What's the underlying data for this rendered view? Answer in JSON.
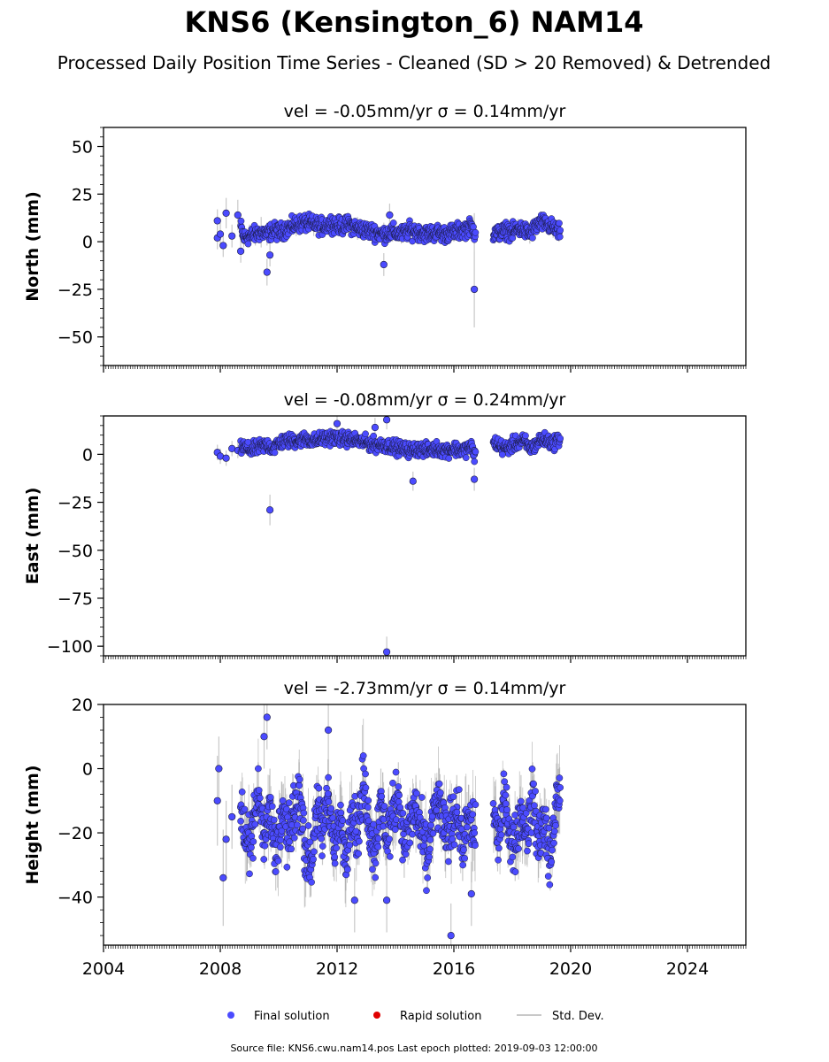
{
  "title": "KNS6 (Kensington_6) NAM14",
  "subtitle": "Processed Daily Position Time Series - Cleaned (SD > 20 Removed) & Detrended",
  "footer": "Source file: KNS6.cwu.nam14.pos  Last epoch plotted: 2019-09-03 12:00:00",
  "colors": {
    "final": "#4b4bff",
    "final_edge": "#1a1a40",
    "rapid": "#e00000",
    "stddev": "#c8c8c8",
    "axis": "#000000"
  },
  "legend": {
    "placement": "bottom-center",
    "items": [
      {
        "label": "Final solution",
        "kind": "dot",
        "color": "#4b4bff"
      },
      {
        "label": "Rapid solution",
        "kind": "dot",
        "color": "#e00000"
      },
      {
        "label": "Std. Dev.",
        "kind": "line",
        "color": "#c8c8c8"
      }
    ]
  },
  "chart_data": [
    {
      "type": "scatter",
      "panel": "north",
      "title": "vel = -0.05mm/yr   σ = 0.14mm/yr",
      "ylabel": "North (mm)",
      "xlim": [
        2004,
        2026
      ],
      "ylim": [
        -65,
        60
      ],
      "yticks": [
        -50,
        -25,
        0,
        25,
        50
      ],
      "ytick_labels": [
        "−50",
        "−25",
        "0",
        "25",
        "50"
      ],
      "xticks": [
        2004,
        2008,
        2012,
        2016,
        2020,
        2024
      ],
      "xtick_labels": [],
      "grid": false,
      "series": [
        {
          "name": "Final solution",
          "x": [
            2007.9,
            2008.0,
            2008.2,
            2008.4,
            2008.6,
            2008.8,
            2009.0,
            2009.2,
            2009.4,
            2009.6,
            2009.8,
            2010.0,
            2010.3,
            2010.6,
            2010.9,
            2011.2,
            2011.5,
            2011.8,
            2012.1,
            2012.4,
            2012.7,
            2013.0,
            2013.3,
            2013.6,
            2013.9,
            2014.2,
            2014.5,
            2014.8,
            2015.1,
            2015.4,
            2015.7,
            2016.0,
            2016.3,
            2016.6,
            2016.7,
            2017.4,
            2017.6,
            2017.8,
            2018.0,
            2018.2,
            2018.4,
            2018.6,
            2018.8,
            2019.0,
            2019.2,
            2019.4,
            2019.6,
            2008.1,
            2008.7,
            2009.6,
            2013.6,
            2016.7,
            2007.9,
            2009.7,
            2013.8
          ],
          "y": [
            2,
            4,
            15,
            3,
            14,
            2,
            3,
            4,
            5,
            4,
            6,
            5,
            7,
            9,
            10,
            9,
            8,
            10,
            8,
            9,
            7,
            6,
            5,
            4,
            5,
            4,
            6,
            5,
            4,
            5,
            4,
            5,
            6,
            8,
            5,
            4,
            5,
            6,
            5,
            7,
            6,
            4,
            8,
            10,
            9,
            7,
            5,
            -2,
            -5,
            -16,
            -12,
            -25,
            11,
            -7,
            14
          ],
          "yerr": [
            6,
            6,
            8,
            6,
            8,
            5,
            6,
            6,
            8,
            6,
            5,
            5,
            5,
            6,
            5,
            6,
            5,
            5,
            5,
            5,
            6,
            5,
            5,
            6,
            5,
            5,
            5,
            5,
            5,
            5,
            5,
            5,
            5,
            6,
            10,
            5,
            5,
            5,
            5,
            5,
            5,
            5,
            5,
            5,
            5,
            5,
            5,
            6,
            6,
            7,
            6,
            20,
            6,
            6,
            6
          ]
        }
      ]
    },
    {
      "type": "scatter",
      "panel": "east",
      "title": "vel = -0.08mm/yr   σ = 0.24mm/yr",
      "ylabel": "East (mm)",
      "xlim": [
        2004,
        2026
      ],
      "ylim": [
        -105,
        20
      ],
      "yticks": [
        -100,
        -75,
        -50,
        -25,
        0
      ],
      "ytick_labels": [
        "−100",
        "−75",
        "−50",
        "−25",
        "0"
      ],
      "xticks": [
        2004,
        2008,
        2012,
        2016,
        2020,
        2024
      ],
      "xtick_labels": [],
      "grid": false,
      "series": [
        {
          "name": "Final solution",
          "x": [
            2007.9,
            2008.0,
            2008.2,
            2008.4,
            2008.6,
            2008.8,
            2009.0,
            2009.2,
            2009.4,
            2009.6,
            2009.8,
            2010.0,
            2010.3,
            2010.6,
            2010.9,
            2011.2,
            2011.5,
            2011.8,
            2012.1,
            2012.4,
            2012.7,
            2013.0,
            2013.3,
            2013.6,
            2013.9,
            2014.2,
            2014.5,
            2014.8,
            2015.1,
            2015.4,
            2015.7,
            2016.0,
            2016.3,
            2016.6,
            2016.7,
            2017.4,
            2017.6,
            2017.8,
            2018.0,
            2018.2,
            2018.4,
            2018.6,
            2018.8,
            2019.0,
            2019.2,
            2019.4,
            2019.6,
            2009.7,
            2013.7,
            2013.7,
            2014.6,
            2016.7,
            2012.0,
            2013.3
          ],
          "y": [
            1,
            -1,
            -2,
            3,
            2,
            4,
            2,
            3,
            4,
            5,
            3,
            6,
            7,
            7,
            8,
            7,
            8,
            9,
            8,
            8,
            7,
            6,
            5,
            5,
            4,
            3,
            2,
            3,
            2,
            3,
            2,
            3,
            2,
            4,
            0,
            6,
            4,
            3,
            5,
            6,
            7,
            3,
            5,
            8,
            7,
            6,
            8,
            -29,
            -103,
            18,
            -14,
            -13,
            16,
            14
          ],
          "yerr": [
            4,
            4,
            4,
            4,
            4,
            4,
            4,
            4,
            4,
            4,
            4,
            4,
            4,
            4,
            4,
            4,
            4,
            4,
            4,
            4,
            4,
            4,
            4,
            4,
            4,
            4,
            4,
            4,
            4,
            4,
            4,
            4,
            4,
            4,
            5,
            4,
            4,
            4,
            4,
            4,
            4,
            4,
            4,
            4,
            4,
            4,
            4,
            8,
            8,
            5,
            5,
            6,
            5,
            5
          ]
        }
      ]
    },
    {
      "type": "scatter",
      "panel": "height",
      "title": "vel = -2.73mm/yr   σ = 0.14mm/yr",
      "ylabel": "Height (mm)",
      "xlim": [
        2004,
        2026
      ],
      "ylim": [
        -55,
        20
      ],
      "yticks": [
        -40,
        -20,
        0,
        20
      ],
      "ytick_labels": [
        "−40",
        "−20",
        "0",
        "20"
      ],
      "xticks": [
        2004,
        2008,
        2012,
        2016,
        2020,
        2024
      ],
      "xtick_labels": [
        "2004",
        "2008",
        "2012",
        "2016",
        "2020",
        "2024"
      ],
      "grid": false,
      "series": [
        {
          "name": "Final solution",
          "x": [
            2007.9,
            2007.95,
            2008.2,
            2008.4,
            2008.7,
            2008.9,
            2009.1,
            2009.3,
            2009.5,
            2009.7,
            2009.9,
            2010.1,
            2010.3,
            2010.5,
            2010.7,
            2010.9,
            2011.1,
            2011.3,
            2011.5,
            2011.7,
            2011.9,
            2012.1,
            2012.3,
            2012.5,
            2012.7,
            2012.9,
            2013.1,
            2013.3,
            2013.5,
            2013.7,
            2013.9,
            2014.1,
            2014.3,
            2014.5,
            2014.7,
            2014.9,
            2015.1,
            2015.3,
            2015.5,
            2015.7,
            2015.9,
            2016.1,
            2016.3,
            2016.5,
            2016.65,
            2017.4,
            2017.5,
            2017.7,
            2017.9,
            2018.1,
            2018.3,
            2018.5,
            2018.7,
            2018.9,
            2019.1,
            2019.3,
            2019.5,
            2019.6,
            2008.1,
            2009.6,
            2012.6,
            2013.7,
            2015.9,
            2016.6,
            2011.7,
            2009.5
          ],
          "y": [
            -10,
            0,
            -22,
            -15,
            -12,
            -25,
            -18,
            -8,
            -20,
            -10,
            -28,
            -14,
            -22,
            -16,
            -8,
            -24,
            -30,
            -12,
            -20,
            -8,
            -25,
            -15,
            -28,
            -12,
            -20,
            -5,
            -18,
            -26,
            -10,
            -22,
            -14,
            -8,
            -24,
            -16,
            -12,
            -20,
            -28,
            -14,
            -10,
            -22,
            -18,
            -12,
            -25,
            -15,
            -20,
            -14,
            -22,
            -10,
            -18,
            -25,
            -12,
            -20,
            -8,
            -24,
            -16,
            -28,
            -12,
            -10,
            -34,
            16,
            -41,
            -41,
            -52,
            -39,
            12,
            10
          ],
          "yerr": [
            14,
            10,
            12,
            10,
            8,
            10,
            10,
            10,
            10,
            10,
            10,
            10,
            10,
            10,
            10,
            10,
            10,
            10,
            10,
            10,
            10,
            10,
            10,
            10,
            10,
            10,
            10,
            10,
            10,
            10,
            10,
            10,
            10,
            10,
            10,
            10,
            10,
            10,
            10,
            10,
            10,
            10,
            10,
            10,
            12,
            10,
            10,
            10,
            10,
            10,
            10,
            10,
            10,
            10,
            10,
            10,
            10,
            10,
            15,
            10,
            10,
            10,
            10,
            10,
            10,
            10
          ]
        }
      ]
    }
  ]
}
